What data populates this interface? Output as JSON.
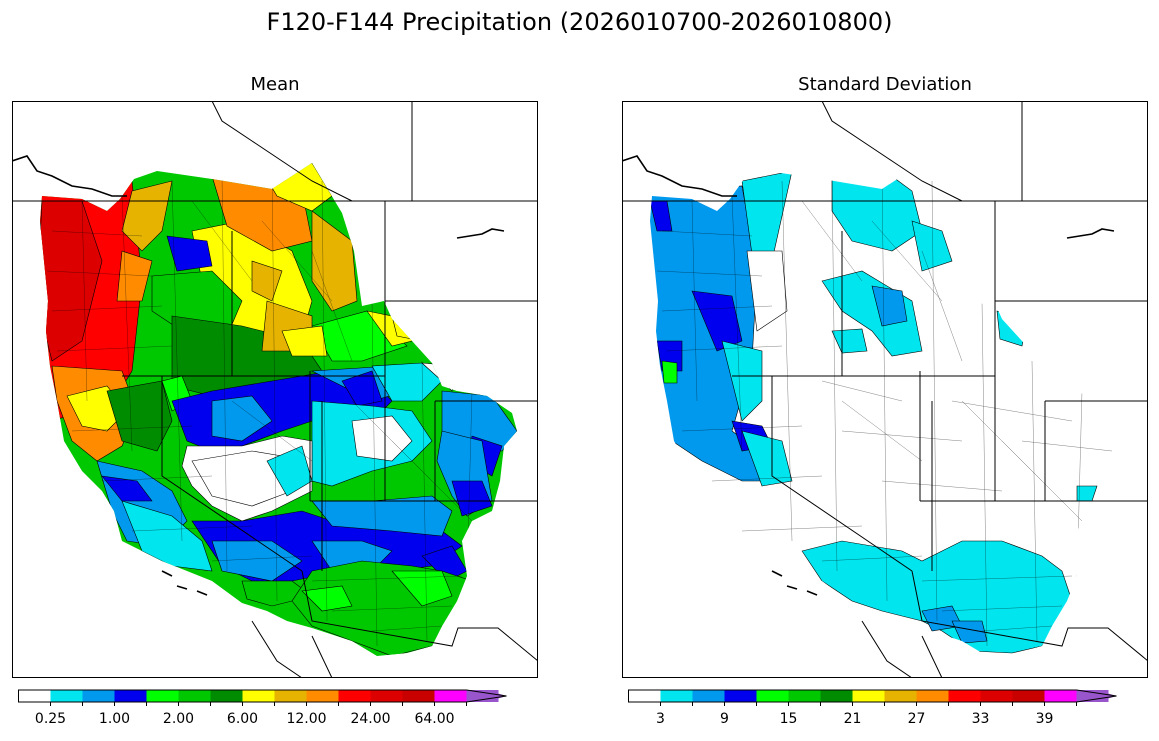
{
  "figure": {
    "title": "F120-F144 Precipitation (2026010700-2026010800)"
  },
  "panels": {
    "mean": {
      "title": "Mean",
      "colorbar": {
        "colors": [
          "#ffffff",
          "#00e5ee",
          "#0099ee",
          "#0000ee",
          "#00ff00",
          "#00c800",
          "#008c00",
          "#ffff00",
          "#e6b400",
          "#ff8c00",
          "#ff0000",
          "#dc0000",
          "#c80000",
          "#ff00ff",
          "#9955cc"
        ],
        "tick_labels": [
          "0.25",
          "1.00",
          "2.00",
          "6.00",
          "12.00",
          "24.00",
          "64.00"
        ]
      }
    },
    "std": {
      "title": "Standard Deviation",
      "colorbar": {
        "colors": [
          "#ffffff",
          "#00e5ee",
          "#0099ee",
          "#0000ee",
          "#00ff00",
          "#00c800",
          "#008c00",
          "#ffff00",
          "#e6b400",
          "#ff8c00",
          "#ff0000",
          "#dc0000",
          "#c80000",
          "#ff00ff",
          "#9955cc"
        ],
        "tick_labels": [
          "3",
          "9",
          "15",
          "21",
          "27",
          "33",
          "39"
        ]
      }
    }
  }
}
